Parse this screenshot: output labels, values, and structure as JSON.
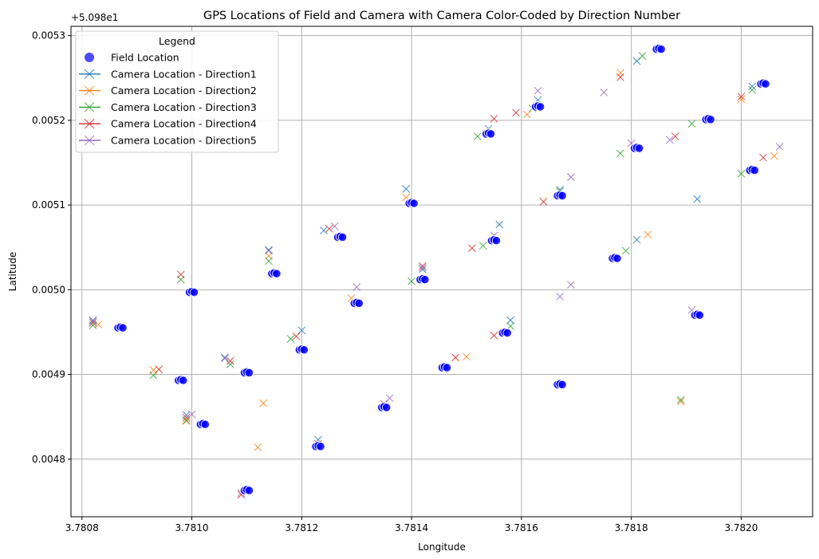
{
  "chart_data": {
    "type": "scatter",
    "title": "GPS Locations of Field and Camera with Camera Color-Coded by Direction Number",
    "xlabel": "Longitude",
    "ylabel": "Latitude",
    "y_offset_label": "+5.098e1",
    "xlim": [
      3.78078,
      3.78213
    ],
    "ylim": [
      0.004732,
      0.005311
    ],
    "x_ticks": [
      3.7808,
      3.781,
      3.7812,
      3.7814,
      3.7816,
      3.7818,
      3.782
    ],
    "x_tick_labels": [
      "3.7808",
      "3.7810",
      "3.7812",
      "3.7814",
      "3.7816",
      "3.7818",
      "3.7820"
    ],
    "y_ticks": [
      0.0048,
      0.0049,
      0.005,
      0.0051,
      0.0052,
      0.0053
    ],
    "y_tick_labels": [
      "0.0048",
      "0.0049",
      "0.0050",
      "0.0051",
      "0.0052",
      "0.0053"
    ],
    "grid": true,
    "legend": {
      "title": "Legend",
      "position": "top-left",
      "entries": [
        "Field Location",
        "Camera Location - Direction1",
        "Camera Location - Direction2",
        "Camera Location - Direction3",
        "Camera Location - Direction4",
        "Camera Location - Direction5"
      ]
    },
    "colors": {
      "field": "#0000ff",
      "Direction1": "#1f77b4",
      "Direction2": "#ff7f0e",
      "Direction3": "#2ca02c",
      "Direction4": "#d62728",
      "Direction5": "#9467bd",
      "grid": "#b0b0b0"
    },
    "field_points": [
      [
        3.78087,
        0.004955
      ],
      [
        3.78098,
        0.004893
      ],
      [
        3.781,
        0.004997
      ],
      [
        3.78102,
        0.004841
      ],
      [
        3.7811,
        0.004763
      ],
      [
        3.7811,
        0.004902
      ],
      [
        3.78115,
        0.005019
      ],
      [
        3.7812,
        0.004929
      ],
      [
        3.78123,
        0.004815
      ],
      [
        3.78127,
        0.005062
      ],
      [
        3.7813,
        0.004984
      ],
      [
        3.78135,
        0.004861
      ],
      [
        3.7814,
        0.005102
      ],
      [
        3.78142,
        0.005012
      ],
      [
        3.78146,
        0.004908
      ],
      [
        3.78154,
        0.005184
      ],
      [
        3.78155,
        0.005058
      ],
      [
        3.78157,
        0.004949
      ],
      [
        3.78163,
        0.005216
      ],
      [
        3.78167,
        0.005111
      ],
      [
        3.78167,
        0.004888
      ],
      [
        3.78177,
        0.005037
      ],
      [
        3.78181,
        0.005167
      ],
      [
        3.78185,
        0.005284
      ],
      [
        3.78192,
        0.00497
      ],
      [
        3.78194,
        0.005201
      ],
      [
        3.78202,
        0.005141
      ],
      [
        3.78204,
        0.005243
      ]
    ],
    "camera_points": {
      "Direction1": [
        [
          3.78082,
          0.004963
        ],
        [
          3.78099,
          0.004852
        ],
        [
          3.78106,
          0.00492
        ],
        [
          3.78114,
          0.005047
        ],
        [
          3.7812,
          0.004952
        ],
        [
          3.78123,
          0.004823
        ],
        [
          3.78124,
          0.00507
        ],
        [
          3.78139,
          0.005119
        ],
        [
          3.78142,
          0.005024
        ],
        [
          3.78154,
          0.00519
        ],
        [
          3.78156,
          0.005077
        ],
        [
          3.78158,
          0.004964
        ],
        [
          3.78163,
          0.005224
        ],
        [
          3.78167,
          0.005118
        ],
        [
          3.78181,
          0.00527
        ],
        [
          3.78181,
          0.005059
        ],
        [
          3.78192,
          0.005107
        ],
        [
          3.78202,
          0.00524
        ]
      ],
      "Direction2": [
        [
          3.78083,
          0.004959
        ],
        [
          3.78093,
          0.004905
        ],
        [
          3.78099,
          0.004845
        ],
        [
          3.78112,
          0.004814
        ],
        [
          3.78113,
          0.004866
        ],
        [
          3.78114,
          0.00504
        ],
        [
          3.78129,
          0.00499
        ],
        [
          3.78139,
          0.005109
        ],
        [
          3.7815,
          0.004921
        ],
        [
          3.78161,
          0.005207
        ],
        [
          3.78178,
          0.005256
        ],
        [
          3.78183,
          0.005065
        ],
        [
          3.78189,
          0.004868
        ],
        [
          3.782,
          0.005225
        ],
        [
          3.78206,
          0.005158
        ]
      ],
      "Direction3": [
        [
          3.78082,
          0.004958
        ],
        [
          3.78093,
          0.004899
        ],
        [
          3.78099,
          0.004846
        ],
        [
          3.78098,
          0.005012
        ],
        [
          3.78107,
          0.004912
        ],
        [
          3.78114,
          0.005034
        ],
        [
          3.78118,
          0.004942
        ],
        [
          3.7814,
          0.00501
        ],
        [
          3.78152,
          0.005181
        ],
        [
          3.78153,
          0.005052
        ],
        [
          3.78158,
          0.004957
        ],
        [
          3.78162,
          0.005214
        ],
        [
          3.78167,
          0.005116
        ],
        [
          3.78178,
          0.005161
        ],
        [
          3.78179,
          0.005046
        ],
        [
          3.78182,
          0.005276
        ],
        [
          3.78189,
          0.00487
        ],
        [
          3.78191,
          0.005196
        ],
        [
          3.782,
          0.005137
        ],
        [
          3.78202,
          0.005236
        ]
      ],
      "Direction4": [
        [
          3.78082,
          0.004961
        ],
        [
          3.78094,
          0.004906
        ],
        [
          3.78098,
          0.005018
        ],
        [
          3.78099,
          0.004849
        ],
        [
          3.78107,
          0.004916
        ],
        [
          3.78109,
          0.004758
        ],
        [
          3.78119,
          0.004945
        ],
        [
          3.78123,
          0.004818
        ],
        [
          3.78125,
          0.005072
        ],
        [
          3.78135,
          0.004865
        ],
        [
          3.78142,
          0.005028
        ],
        [
          3.78148,
          0.00492
        ],
        [
          3.78151,
          0.005049
        ],
        [
          3.78155,
          0.005202
        ],
        [
          3.78155,
          0.004946
        ],
        [
          3.78159,
          0.005209
        ],
        [
          3.78164,
          0.005104
        ],
        [
          3.78178,
          0.005251
        ],
        [
          3.78188,
          0.005181
        ],
        [
          3.782,
          0.005228
        ],
        [
          3.78204,
          0.005156
        ]
      ],
      "Direction5": [
        [
          3.78082,
          0.004964
        ],
        [
          3.781,
          0.004853
        ],
        [
          3.78106,
          0.004919
        ],
        [
          3.78109,
          0.00476
        ],
        [
          3.78114,
          0.005046
        ],
        [
          3.78126,
          0.005075
        ],
        [
          3.7813,
          0.005003
        ],
        [
          3.78136,
          0.004872
        ],
        [
          3.78142,
          0.005026
        ],
        [
          3.78155,
          0.005064
        ],
        [
          3.78163,
          0.005235
        ],
        [
          3.78167,
          0.004992
        ],
        [
          3.78169,
          0.005133
        ],
        [
          3.78169,
          0.005006
        ],
        [
          3.78175,
          0.005233
        ],
        [
          3.7818,
          0.005173
        ],
        [
          3.78187,
          0.005177
        ],
        [
          3.78191,
          0.004976
        ],
        [
          3.78207,
          0.005169
        ]
      ]
    }
  }
}
